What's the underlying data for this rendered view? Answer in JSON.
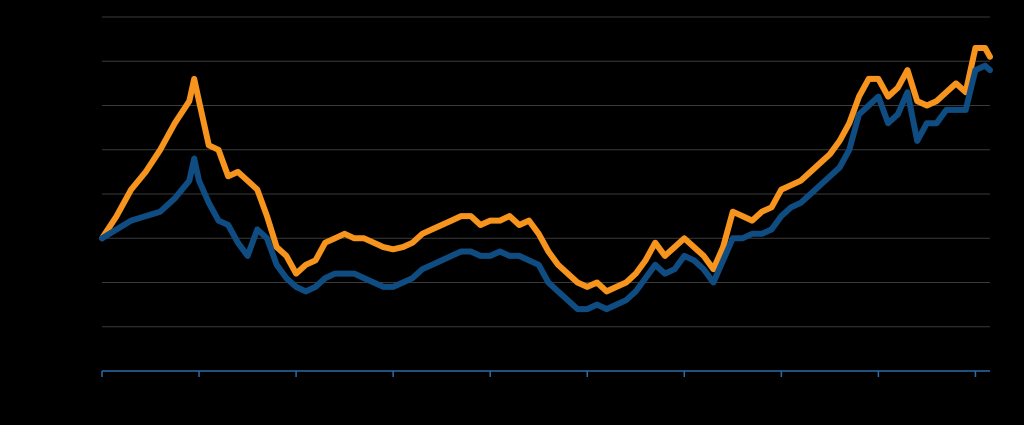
{
  "chart_data": {
    "type": "line",
    "title": "",
    "xlabel": "",
    "ylabel": "",
    "x_range": [
      0,
      9.15
    ],
    "ylim": [
      0,
      8
    ],
    "x_ticks": [
      0,
      1,
      2,
      3,
      4,
      5,
      6,
      7,
      8,
      9
    ],
    "y_gridlines": [
      1,
      2,
      3,
      4,
      5,
      6,
      7,
      8
    ],
    "grid": true,
    "legend": "none",
    "colors": {
      "background": "#000000",
      "gridline": "#3a3a3a",
      "axis": "#2e6aa8",
      "series_orange": "#f7941d",
      "series_blue": "#0f4c81"
    },
    "series": [
      {
        "color": "#f7941d",
        "points": [
          [
            0.0,
            3.0
          ],
          [
            0.15,
            3.5
          ],
          [
            0.3,
            4.1
          ],
          [
            0.45,
            4.5
          ],
          [
            0.6,
            5.0
          ],
          [
            0.75,
            5.6
          ],
          [
            0.9,
            6.1
          ],
          [
            0.95,
            6.6
          ],
          [
            1.0,
            6.1
          ],
          [
            1.1,
            5.1
          ],
          [
            1.2,
            5.0
          ],
          [
            1.3,
            4.4
          ],
          [
            1.4,
            4.5
          ],
          [
            1.5,
            4.3
          ],
          [
            1.6,
            4.1
          ],
          [
            1.7,
            3.5
          ],
          [
            1.8,
            2.8
          ],
          [
            1.9,
            2.6
          ],
          [
            2.0,
            2.2
          ],
          [
            2.1,
            2.4
          ],
          [
            2.2,
            2.5
          ],
          [
            2.3,
            2.9
          ],
          [
            2.4,
            3.0
          ],
          [
            2.5,
            3.1
          ],
          [
            2.6,
            3.0
          ],
          [
            2.7,
            3.0
          ],
          [
            2.8,
            2.9
          ],
          [
            2.9,
            2.8
          ],
          [
            3.0,
            2.75
          ],
          [
            3.1,
            2.8
          ],
          [
            3.2,
            2.9
          ],
          [
            3.3,
            3.1
          ],
          [
            3.4,
            3.2
          ],
          [
            3.5,
            3.3
          ],
          [
            3.6,
            3.4
          ],
          [
            3.7,
            3.5
          ],
          [
            3.8,
            3.5
          ],
          [
            3.9,
            3.3
          ],
          [
            4.0,
            3.4
          ],
          [
            4.1,
            3.4
          ],
          [
            4.2,
            3.5
          ],
          [
            4.3,
            3.3
          ],
          [
            4.4,
            3.4
          ],
          [
            4.5,
            3.1
          ],
          [
            4.6,
            2.7
          ],
          [
            4.7,
            2.4
          ],
          [
            4.8,
            2.2
          ],
          [
            4.9,
            2.0
          ],
          [
            5.0,
            1.9
          ],
          [
            5.1,
            2.0
          ],
          [
            5.2,
            1.8
          ],
          [
            5.3,
            1.9
          ],
          [
            5.4,
            2.0
          ],
          [
            5.5,
            2.2
          ],
          [
            5.6,
            2.5
          ],
          [
            5.7,
            2.9
          ],
          [
            5.8,
            2.6
          ],
          [
            5.9,
            2.8
          ],
          [
            6.0,
            3.0
          ],
          [
            6.1,
            2.8
          ],
          [
            6.2,
            2.6
          ],
          [
            6.3,
            2.3
          ],
          [
            6.4,
            2.8
          ],
          [
            6.5,
            3.6
          ],
          [
            6.6,
            3.5
          ],
          [
            6.7,
            3.4
          ],
          [
            6.8,
            3.6
          ],
          [
            6.9,
            3.7
          ],
          [
            7.0,
            4.1
          ],
          [
            7.1,
            4.2
          ],
          [
            7.2,
            4.3
          ],
          [
            7.3,
            4.5
          ],
          [
            7.4,
            4.7
          ],
          [
            7.5,
            4.9
          ],
          [
            7.6,
            5.2
          ],
          [
            7.7,
            5.6
          ],
          [
            7.8,
            6.2
          ],
          [
            7.9,
            6.6
          ],
          [
            8.0,
            6.6
          ],
          [
            8.1,
            6.2
          ],
          [
            8.2,
            6.4
          ],
          [
            8.3,
            6.8
          ],
          [
            8.4,
            6.1
          ],
          [
            8.5,
            6.0
          ],
          [
            8.6,
            6.1
          ],
          [
            8.7,
            6.3
          ],
          [
            8.8,
            6.5
          ],
          [
            8.9,
            6.3
          ],
          [
            9.0,
            7.3
          ],
          [
            9.1,
            7.3
          ],
          [
            9.15,
            7.1
          ]
        ]
      },
      {
        "color": "#0f4c81",
        "points": [
          [
            0.0,
            3.0
          ],
          [
            0.15,
            3.2
          ],
          [
            0.3,
            3.4
          ],
          [
            0.45,
            3.5
          ],
          [
            0.6,
            3.6
          ],
          [
            0.75,
            3.9
          ],
          [
            0.9,
            4.3
          ],
          [
            0.95,
            4.8
          ],
          [
            1.0,
            4.3
          ],
          [
            1.1,
            3.8
          ],
          [
            1.2,
            3.4
          ],
          [
            1.3,
            3.3
          ],
          [
            1.4,
            2.9
          ],
          [
            1.5,
            2.6
          ],
          [
            1.6,
            3.2
          ],
          [
            1.7,
            3.0
          ],
          [
            1.8,
            2.4
          ],
          [
            1.9,
            2.1
          ],
          [
            2.0,
            1.9
          ],
          [
            2.1,
            1.8
          ],
          [
            2.2,
            1.9
          ],
          [
            2.3,
            2.1
          ],
          [
            2.4,
            2.2
          ],
          [
            2.5,
            2.2
          ],
          [
            2.6,
            2.2
          ],
          [
            2.7,
            2.1
          ],
          [
            2.8,
            2.0
          ],
          [
            2.9,
            1.9
          ],
          [
            3.0,
            1.9
          ],
          [
            3.1,
            2.0
          ],
          [
            3.2,
            2.1
          ],
          [
            3.3,
            2.3
          ],
          [
            3.4,
            2.4
          ],
          [
            3.5,
            2.5
          ],
          [
            3.6,
            2.6
          ],
          [
            3.7,
            2.7
          ],
          [
            3.8,
            2.7
          ],
          [
            3.9,
            2.6
          ],
          [
            4.0,
            2.6
          ],
          [
            4.1,
            2.7
          ],
          [
            4.2,
            2.6
          ],
          [
            4.3,
            2.6
          ],
          [
            4.4,
            2.5
          ],
          [
            4.5,
            2.4
          ],
          [
            4.6,
            2.0
          ],
          [
            4.7,
            1.8
          ],
          [
            4.8,
            1.6
          ],
          [
            4.9,
            1.4
          ],
          [
            5.0,
            1.4
          ],
          [
            5.1,
            1.5
          ],
          [
            5.2,
            1.4
          ],
          [
            5.3,
            1.5
          ],
          [
            5.4,
            1.6
          ],
          [
            5.5,
            1.8
          ],
          [
            5.6,
            2.1
          ],
          [
            5.7,
            2.4
          ],
          [
            5.8,
            2.2
          ],
          [
            5.9,
            2.3
          ],
          [
            6.0,
            2.6
          ],
          [
            6.1,
            2.5
          ],
          [
            6.2,
            2.3
          ],
          [
            6.3,
            2.0
          ],
          [
            6.4,
            2.5
          ],
          [
            6.5,
            3.0
          ],
          [
            6.6,
            3.0
          ],
          [
            6.7,
            3.1
          ],
          [
            6.8,
            3.1
          ],
          [
            6.9,
            3.2
          ],
          [
            7.0,
            3.5
          ],
          [
            7.1,
            3.7
          ],
          [
            7.2,
            3.8
          ],
          [
            7.3,
            4.0
          ],
          [
            7.4,
            4.2
          ],
          [
            7.5,
            4.4
          ],
          [
            7.6,
            4.6
          ],
          [
            7.7,
            5.0
          ],
          [
            7.8,
            5.8
          ],
          [
            7.9,
            6.0
          ],
          [
            8.0,
            6.2
          ],
          [
            8.1,
            5.6
          ],
          [
            8.2,
            5.8
          ],
          [
            8.3,
            6.3
          ],
          [
            8.4,
            5.2
          ],
          [
            8.5,
            5.6
          ],
          [
            8.6,
            5.6
          ],
          [
            8.7,
            5.9
          ],
          [
            8.8,
            5.9
          ],
          [
            8.9,
            5.9
          ],
          [
            9.0,
            6.8
          ],
          [
            9.1,
            6.9
          ],
          [
            9.15,
            6.8
          ]
        ]
      }
    ]
  }
}
